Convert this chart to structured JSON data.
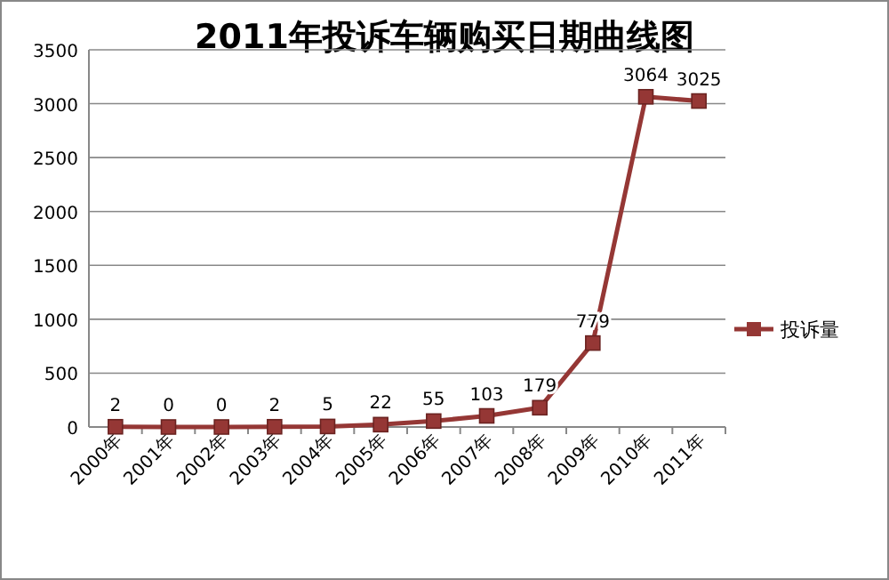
{
  "chart_data": {
    "type": "line",
    "title": "2011年投诉车辆购买日期曲线图",
    "categories": [
      "2000年",
      "2001年",
      "2002年",
      "2003年",
      "2004年",
      "2005年",
      "2006年",
      "2007年",
      "2008年",
      "2009年",
      "2010年",
      "2011年"
    ],
    "series": [
      {
        "name": "投诉量",
        "color": "#953735",
        "values": [
          2,
          0,
          0,
          2,
          5,
          22,
          55,
          103,
          179,
          779,
          3064,
          3025
        ]
      }
    ],
    "ylim": [
      0,
      3500
    ],
    "yticks": [
      0,
      500,
      1000,
      1500,
      2000,
      2500,
      3000,
      3500
    ],
    "grid": "y",
    "legend": "right",
    "data_labels": true,
    "marker": "square",
    "line_style": "solid"
  }
}
